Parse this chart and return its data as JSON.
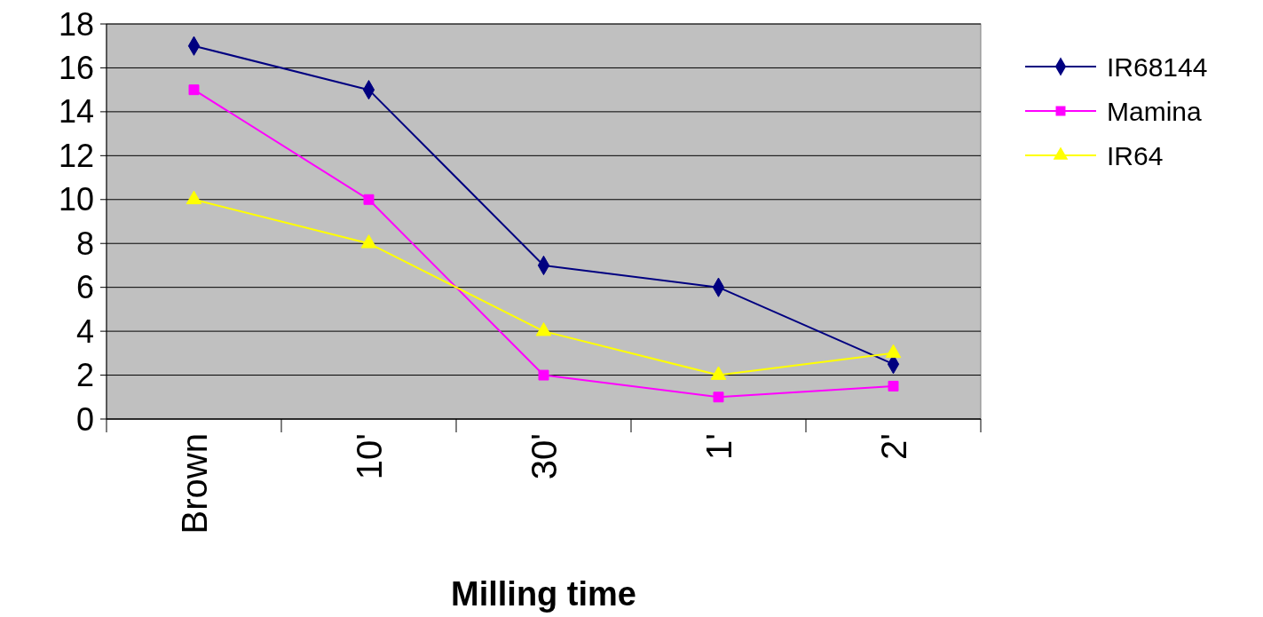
{
  "chart_data": {
    "type": "line",
    "xlabel": "Milling time",
    "categories": [
      "Brown",
      "10'",
      "30'",
      "1'",
      "2'"
    ],
    "series": [
      {
        "name": "IR68144",
        "color": "#000080",
        "marker": "diamond",
        "values": [
          17,
          15,
          7,
          6,
          2.5
        ]
      },
      {
        "name": "Mamina",
        "color": "#ff00ff",
        "marker": "square",
        "values": [
          15,
          10,
          2,
          1,
          1.5
        ]
      },
      {
        "name": "IR64",
        "color": "#ffff00",
        "marker": "triangle",
        "values": [
          10,
          8,
          4,
          2,
          3
        ]
      }
    ],
    "ylim": [
      0,
      18
    ],
    "yticks": [
      0,
      2,
      4,
      6,
      8,
      10,
      12,
      14,
      16,
      18
    ],
    "grid": "y",
    "legend": "right",
    "line_style": "solid"
  }
}
